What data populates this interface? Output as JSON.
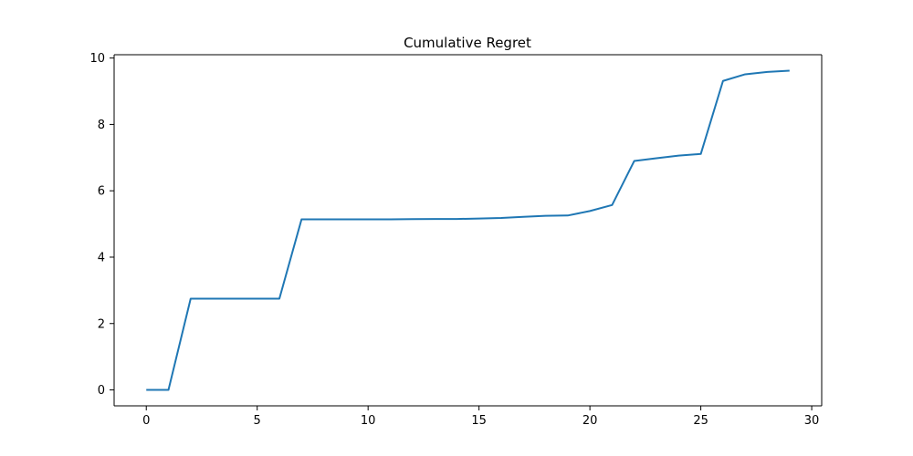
{
  "chart_data": {
    "type": "line",
    "title": "Cumulative Regret",
    "xlabel": "",
    "ylabel": "",
    "xlim": [
      -1.45,
      30.45
    ],
    "ylim": [
      -0.48,
      10.1
    ],
    "xticks": [
      0,
      5,
      10,
      15,
      20,
      25,
      30
    ],
    "yticks": [
      0,
      2,
      4,
      6,
      8,
      10
    ],
    "grid": false,
    "legend": "none",
    "series": [
      {
        "color": "#1f77b4",
        "x": [
          0,
          1,
          2,
          3,
          4,
          5,
          6,
          7,
          8,
          9,
          10,
          11,
          12,
          13,
          14,
          15,
          16,
          17,
          18,
          19,
          20,
          21,
          22,
          23,
          24,
          25,
          26,
          27,
          28,
          29
        ],
        "y": [
          0.0,
          0.0,
          2.75,
          2.75,
          2.75,
          2.75,
          2.75,
          5.14,
          5.14,
          5.14,
          5.14,
          5.14,
          5.145,
          5.15,
          5.15,
          5.165,
          5.18,
          5.215,
          5.245,
          5.255,
          5.39,
          5.57,
          6.9,
          6.98,
          7.06,
          7.11,
          9.31,
          9.51,
          9.58,
          9.62
        ]
      }
    ]
  }
}
